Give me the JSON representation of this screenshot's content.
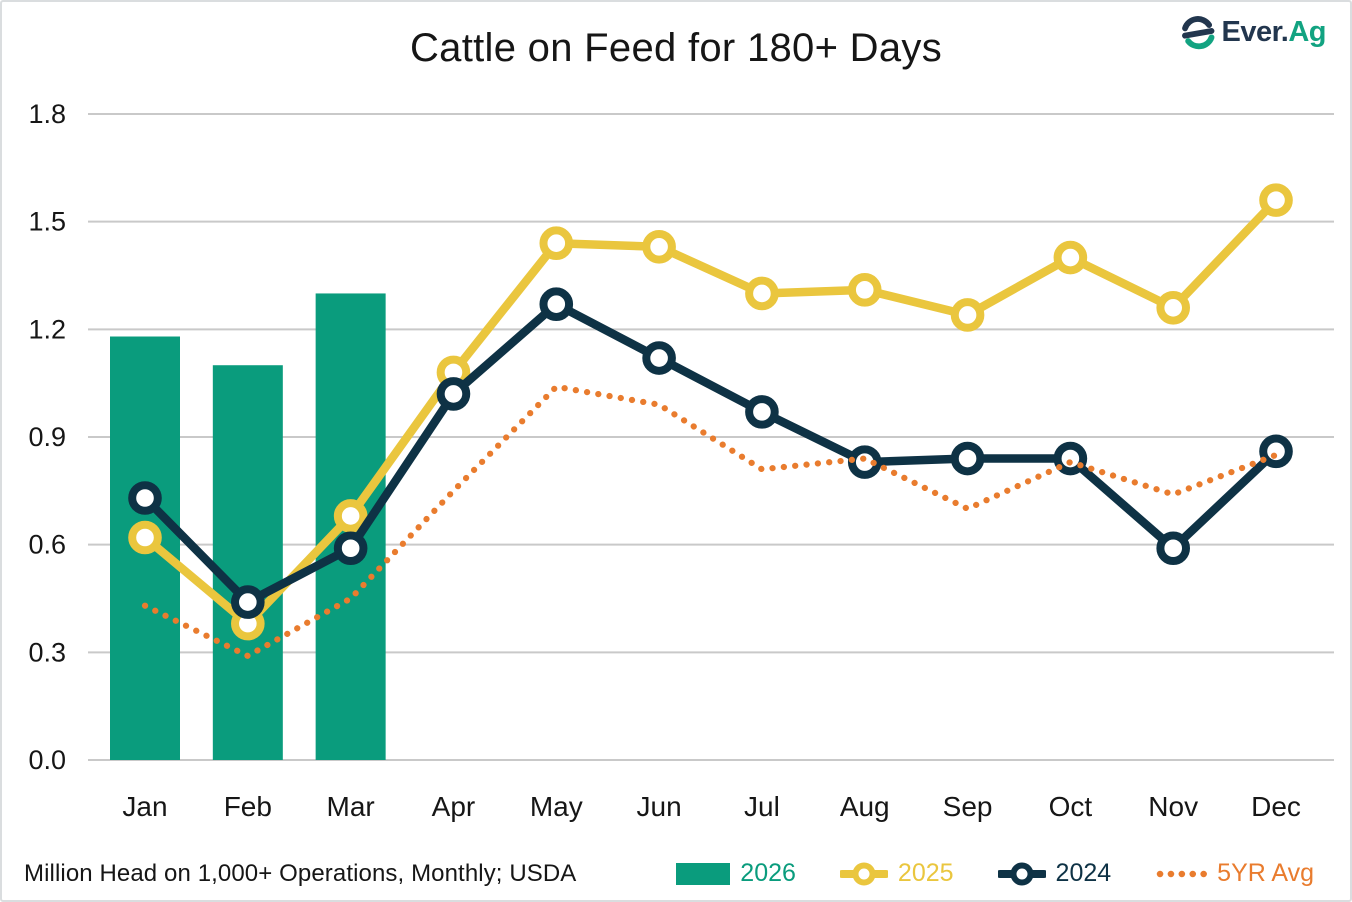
{
  "header": {
    "title": "Cattle on Feed for 180+ Days",
    "brand_ever": "Ever.",
    "brand_ag": "Ag"
  },
  "footer": {
    "source_note": "Million Head on 1,000+ Operations, Monthly; USDA"
  },
  "colors": {
    "teal": "#0a9c7d",
    "yellow": "#eac63e",
    "navy": "#0e3245",
    "orange": "#e97c2e",
    "grid": "#c9c9c9",
    "text": "#161616",
    "logo_navy": "#22364e",
    "logo_teal": "#12a381"
  },
  "legend": [
    {
      "label": "2026",
      "type": "bar",
      "color": "#0a9c7d"
    },
    {
      "label": "2025",
      "type": "line-marker",
      "color": "#eac63e"
    },
    {
      "label": "2024",
      "type": "line-marker",
      "color": "#0e3245"
    },
    {
      "label": "5YR Avg",
      "type": "dotted",
      "color": "#e97c2e"
    }
  ],
  "chart_data": {
    "type": "combo bar+line",
    "title": "Cattle on Feed for 180+ Days",
    "xlabel": "",
    "ylabel": "Million Head on 1,000+ Operations, Monthly; USDA",
    "categories": [
      "Jan",
      "Feb",
      "Mar",
      "Apr",
      "May",
      "Jun",
      "Jul",
      "Aug",
      "Sep",
      "Oct",
      "Nov",
      "Dec"
    ],
    "ylim": [
      0,
      1.8
    ],
    "yticks": [
      1.8,
      1.5,
      1.2,
      0.9,
      0.6,
      0.3,
      0.0
    ],
    "grid": true,
    "legend_position": "bottom",
    "bar_series": {
      "name": "2026",
      "color": "#0a9c7d",
      "values": [
        1.18,
        1.1,
        1.3,
        null,
        null,
        null,
        null,
        null,
        null,
        null,
        null,
        null
      ]
    },
    "line_series": [
      {
        "name": "2025",
        "style": "solid-marker",
        "color": "#eac63e",
        "values": [
          0.62,
          0.38,
          0.68,
          1.08,
          1.44,
          1.43,
          1.3,
          1.31,
          1.24,
          1.4,
          1.26,
          1.56
        ]
      },
      {
        "name": "2024",
        "style": "solid-marker",
        "color": "#0e3245",
        "values": [
          0.73,
          0.44,
          0.59,
          1.02,
          1.27,
          1.12,
          0.97,
          0.83,
          0.84,
          0.84,
          0.59,
          0.86
        ]
      },
      {
        "name": "5YR Avg",
        "style": "dotted",
        "color": "#e97c2e",
        "values": [
          0.43,
          0.29,
          0.45,
          0.75,
          1.04,
          0.99,
          0.81,
          0.84,
          0.7,
          0.83,
          0.74,
          0.85
        ]
      }
    ]
  }
}
